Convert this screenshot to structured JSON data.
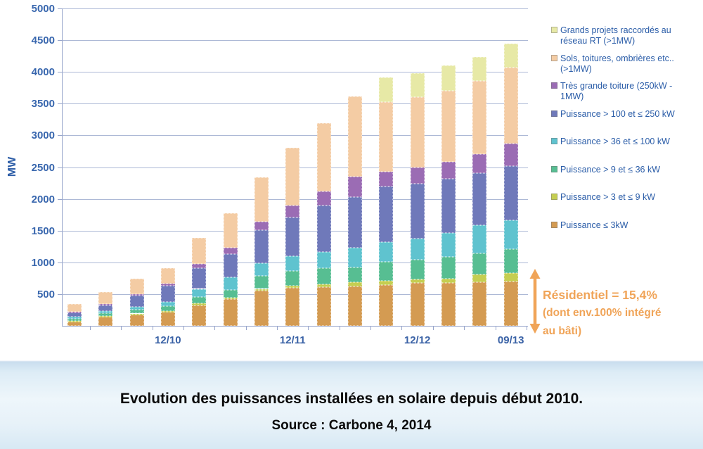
{
  "chart_data": {
    "type": "stacked-bar",
    "unit": "MW",
    "ylabel": "MW",
    "ylim": [
      0,
      5000
    ],
    "ytick_step": 500,
    "y_ticks": [
      500,
      1000,
      1500,
      2000,
      2500,
      3000,
      3500,
      4000,
      4500,
      5000
    ],
    "bar_count": 15,
    "x_tick_labels": [
      {
        "bar_index": 3,
        "label": "12/10"
      },
      {
        "bar_index": 7,
        "label": "12/11"
      },
      {
        "bar_index": 11,
        "label": "12/12"
      },
      {
        "bar_index": 14,
        "label": "09/13"
      }
    ],
    "grid": true,
    "legend_position": "right",
    "series": [
      {
        "name": "Puissance ≤ 3kW",
        "color": "#D49B52",
        "values": [
          77,
          154,
          187,
          223,
          326,
          425,
          553,
          601,
          610,
          626,
          648,
          674,
          680,
          692,
          700
        ]
      },
      {
        "name": "Puissance > 3 et ≤ 9 kW",
        "color": "#C5CE51",
        "values": [
          5,
          6,
          7,
          8,
          26,
          22,
          29,
          26,
          40,
          66,
          63,
          62,
          67,
          118,
          128
        ]
      },
      {
        "name": "Puissance > 9 et ≤ 36 kW",
        "color": "#57BE92",
        "values": [
          31,
          41,
          59,
          77,
          102,
          117,
          209,
          241,
          255,
          228,
          293,
          305,
          338,
          333,
          377
        ]
      },
      {
        "name": "Puissance > 36 et ≤ 100 kW",
        "color": "#5FC3CF",
        "values": [
          30,
          33,
          47,
          66,
          128,
          202,
          195,
          234,
          255,
          314,
          311,
          329,
          377,
          447,
          458
        ]
      },
      {
        "name": "Puissance > 100 et ≤ 250 kW",
        "color": "#6F79BA",
        "values": [
          67,
          92,
          173,
          253,
          323,
          366,
          520,
          609,
          738,
          796,
          879,
          868,
          854,
          813,
          857
        ]
      },
      {
        "name": "Très grande toiture (250kW - 1MW)",
        "color": "#9B6CB4",
        "values": [
          15,
          18,
          29,
          36,
          66,
          102,
          132,
          190,
          223,
          318,
          238,
          260,
          270,
          307,
          350
        ]
      },
      {
        "name": "Sols, toitures, ombrières etc.. (>1MW)",
        "color": "#F4CCA4",
        "values": [
          118,
          191,
          242,
          249,
          410,
          539,
          702,
          899,
          1073,
          1262,
          1092,
          1107,
          1121,
          1144,
          1200
        ]
      },
      {
        "name": "Grands projets raccordés au réseau RT (>1MW)",
        "color": "#E7E9A6",
        "values": [
          0,
          0,
          0,
          0,
          0,
          0,
          0,
          0,
          0,
          0,
          392,
          373,
          392,
          380,
          378
        ]
      }
    ],
    "totals_mw": [
      343,
      535,
      744,
      912,
      1381,
      1773,
      2340,
      2800,
      3194,
      3610,
      3916,
      3978,
      4099,
      4234,
      4448
    ],
    "legend": [
      {
        "label": "Grands projets raccordés au réseau RT (>1MW)",
        "color": "#E7E9A6"
      },
      {
        "label": "Sols, toitures, ombrières etc.. (>1MW)",
        "color": "#F4CCA4"
      },
      {
        "label": "Très grande toiture (250kW - 1MW)",
        "color": "#9B6CB4"
      },
      {
        "label": "Puissance  > 100 et ≤ 250 kW",
        "color": "#6F79BA"
      },
      {
        "label": "Puissance  > 36 et ≤ 100 kW",
        "color": "#5FC3CF"
      },
      {
        "label": "Puissance  > 9 et ≤ 36 kW",
        "color": "#57BE92"
      },
      {
        "label": "Puissance  > 3 et ≤ 9 kW",
        "color": "#C5CE51"
      },
      {
        "label": "Puissance  ≤ 3kW",
        "color": "#D49B52"
      }
    ]
  },
  "annotation": {
    "line1": "Résidentiel = 15,4%",
    "line2": "(dont env.100% intégré",
    "line3": "au bâti)",
    "color": "#F0A458"
  },
  "footer": {
    "title": "Evolution des puissances installées en solaire depuis début 2010.",
    "source": "Source : Carbone 4, 2014"
  }
}
